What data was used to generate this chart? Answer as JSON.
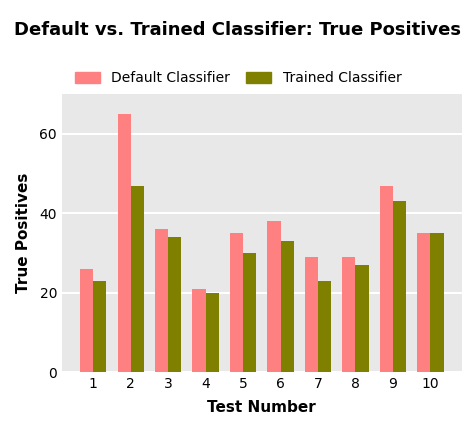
{
  "title": "Default vs. Trained Classifier: True Positives",
  "xlabel": "Test Number",
  "ylabel": "True Positives",
  "categories": [
    1,
    2,
    3,
    4,
    5,
    6,
    7,
    8,
    9,
    10
  ],
  "default_values": [
    26,
    65,
    36,
    21,
    35,
    38,
    29,
    29,
    47,
    35
  ],
  "trained_values": [
    23,
    47,
    34,
    20,
    30,
    33,
    23,
    27,
    43,
    35
  ],
  "default_color": "#FF8080",
  "trained_color": "#808000",
  "background_color": "#E8E8E8",
  "fig_background": "#FFFFFF",
  "ylim": [
    0,
    70
  ],
  "yticks": [
    0,
    20,
    40,
    60
  ],
  "legend_default": "Default Classifier",
  "legend_trained": "Trained Classifier",
  "bar_width": 0.35,
  "title_fontsize": 13,
  "label_fontsize": 11,
  "tick_fontsize": 10,
  "legend_fontsize": 10
}
